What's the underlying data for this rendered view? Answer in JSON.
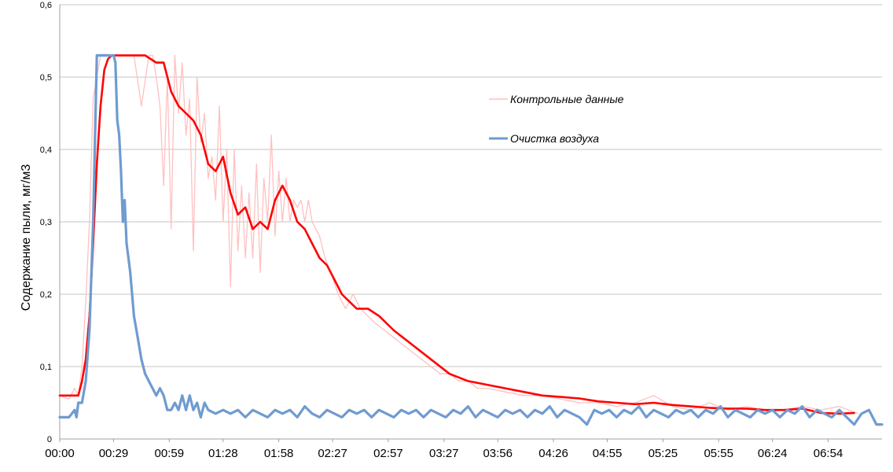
{
  "chart_data": {
    "type": "line",
    "ylabel": "Содержание пыли, мг/м3",
    "xlabel": "",
    "ylim": [
      0,
      0.6
    ],
    "y_ticks": [
      "0",
      "0,1",
      "0,2",
      "0,3",
      "0,4",
      "0,5",
      "0,6"
    ],
    "y_tick_values": [
      0,
      0.1,
      0.2,
      0.3,
      0.4,
      0.5,
      0.6
    ],
    "x_ticks": [
      "00:00",
      "00:29",
      "00:59",
      "01:28",
      "01:58",
      "02:27",
      "02:57",
      "03:27",
      "03:56",
      "04:26",
      "04:55",
      "05:25",
      "05:55",
      "06:24",
      "06:54"
    ],
    "x_tick_seconds": [
      0,
      29,
      59,
      88,
      118,
      147,
      177,
      207,
      236,
      266,
      295,
      325,
      355,
      384,
      414
    ],
    "x_range_seconds": [
      0,
      443
    ],
    "grid": true,
    "legend_position": "right",
    "series": [
      {
        "name": "Контрольные данные",
        "color": "#ffc0c0",
        "x_seconds": [
          0,
          5,
          8,
          10,
          12,
          14,
          16,
          18,
          20,
          22,
          25,
          28,
          30,
          32,
          35,
          38,
          40,
          44,
          48,
          50,
          52,
          54,
          56,
          58,
          60,
          62,
          64,
          66,
          68,
          70,
          72,
          74,
          76,
          78,
          80,
          82,
          84,
          86,
          88,
          90,
          92,
          94,
          96,
          98,
          100,
          102,
          104,
          106,
          108,
          110,
          112,
          114,
          116,
          118,
          120,
          122,
          124,
          126,
          128,
          130,
          132,
          134,
          136,
          138,
          140,
          143,
          146,
          150,
          154,
          158,
          162,
          166,
          170,
          175,
          180,
          185,
          190,
          195,
          200,
          205,
          210,
          215,
          220,
          225,
          230,
          240,
          250,
          260,
          270,
          280,
          290,
          300,
          310,
          320,
          330,
          340,
          350,
          360,
          370,
          380,
          390,
          400,
          410,
          420,
          430
        ],
        "values": [
          0.06,
          0.055,
          0.07,
          0.06,
          0.1,
          0.19,
          0.3,
          0.47,
          0.5,
          0.53,
          0.53,
          0.53,
          0.53,
          0.53,
          0.53,
          0.53,
          0.53,
          0.46,
          0.53,
          0.53,
          0.5,
          0.46,
          0.35,
          0.5,
          0.29,
          0.53,
          0.45,
          0.52,
          0.42,
          0.47,
          0.26,
          0.5,
          0.41,
          0.45,
          0.36,
          0.39,
          0.33,
          0.46,
          0.3,
          0.4,
          0.21,
          0.4,
          0.26,
          0.35,
          0.25,
          0.34,
          0.25,
          0.38,
          0.23,
          0.36,
          0.3,
          0.42,
          0.28,
          0.37,
          0.3,
          0.36,
          0.3,
          0.33,
          0.32,
          0.33,
          0.3,
          0.33,
          0.3,
          0.29,
          0.28,
          0.25,
          0.23,
          0.2,
          0.18,
          0.2,
          0.18,
          0.17,
          0.16,
          0.15,
          0.14,
          0.13,
          0.12,
          0.11,
          0.1,
          0.09,
          0.09,
          0.08,
          0.08,
          0.07,
          0.07,
          0.065,
          0.06,
          0.06,
          0.055,
          0.05,
          0.05,
          0.045,
          0.05,
          0.06,
          0.045,
          0.04,
          0.05,
          0.04,
          0.045,
          0.04,
          0.04,
          0.045,
          0.04,
          0.045,
          0.035
        ]
      },
      {
        "name": "",
        "color": "#ff0000",
        "x_seconds": [
          0,
          10,
          12,
          14,
          16,
          18,
          20,
          22,
          24,
          26,
          28,
          30,
          40,
          46,
          52,
          56,
          60,
          64,
          68,
          72,
          76,
          80,
          84,
          88,
          92,
          96,
          100,
          104,
          108,
          112,
          116,
          120,
          124,
          128,
          132,
          136,
          140,
          144,
          148,
          152,
          156,
          160,
          166,
          172,
          180,
          190,
          200,
          210,
          220,
          230,
          240,
          250,
          260,
          270,
          280,
          290,
          300,
          310,
          320,
          330,
          340,
          350,
          360,
          370,
          380,
          390,
          400,
          410,
          420,
          428
        ],
        "values": [
          0.06,
          0.06,
          0.08,
          0.11,
          0.17,
          0.27,
          0.38,
          0.46,
          0.51,
          0.525,
          0.53,
          0.53,
          0.53,
          0.53,
          0.52,
          0.52,
          0.48,
          0.46,
          0.45,
          0.44,
          0.42,
          0.38,
          0.37,
          0.39,
          0.34,
          0.31,
          0.32,
          0.29,
          0.3,
          0.29,
          0.33,
          0.35,
          0.33,
          0.3,
          0.29,
          0.27,
          0.25,
          0.24,
          0.22,
          0.2,
          0.19,
          0.18,
          0.18,
          0.17,
          0.15,
          0.13,
          0.11,
          0.09,
          0.08,
          0.075,
          0.07,
          0.065,
          0.06,
          0.058,
          0.056,
          0.052,
          0.05,
          0.048,
          0.05,
          0.047,
          0.045,
          0.043,
          0.042,
          0.042,
          0.04,
          0.04,
          0.042,
          0.036,
          0.035,
          0.036
        ]
      },
      {
        "name": "Очистка воздуха",
        "color": "#6f9bd1",
        "x_seconds": [
          0,
          5,
          8,
          9,
          10,
          12,
          14,
          16,
          18,
          20,
          22,
          24,
          26,
          28,
          29,
          30,
          31,
          32,
          33,
          34,
          35,
          36,
          37,
          38,
          40,
          42,
          44,
          46,
          48,
          50,
          52,
          54,
          56,
          58,
          60,
          62,
          64,
          66,
          68,
          70,
          72,
          74,
          76,
          78,
          80,
          84,
          88,
          92,
          96,
          100,
          104,
          108,
          112,
          116,
          120,
          124,
          128,
          132,
          136,
          140,
          144,
          148,
          152,
          156,
          160,
          164,
          168,
          172,
          176,
          180,
          184,
          188,
          192,
          196,
          200,
          204,
          208,
          212,
          216,
          220,
          224,
          228,
          232,
          236,
          240,
          244,
          248,
          252,
          256,
          260,
          264,
          268,
          272,
          276,
          280,
          284,
          288,
          292,
          296,
          300,
          304,
          308,
          312,
          316,
          320,
          324,
          328,
          332,
          336,
          340,
          344,
          348,
          352,
          356,
          360,
          364,
          368,
          372,
          376,
          380,
          384,
          388,
          392,
          396,
          400,
          404,
          408,
          412,
          416,
          420,
          424,
          428,
          432,
          436,
          440,
          443
        ],
        "values": [
          0.03,
          0.03,
          0.04,
          0.03,
          0.05,
          0.05,
          0.08,
          0.15,
          0.3,
          0.53,
          0.53,
          0.53,
          0.53,
          0.53,
          0.53,
          0.52,
          0.44,
          0.42,
          0.37,
          0.3,
          0.33,
          0.27,
          0.25,
          0.23,
          0.17,
          0.14,
          0.11,
          0.09,
          0.08,
          0.07,
          0.06,
          0.07,
          0.06,
          0.04,
          0.04,
          0.05,
          0.04,
          0.06,
          0.04,
          0.06,
          0.04,
          0.05,
          0.03,
          0.05,
          0.04,
          0.035,
          0.04,
          0.035,
          0.04,
          0.03,
          0.04,
          0.035,
          0.03,
          0.04,
          0.035,
          0.04,
          0.03,
          0.045,
          0.035,
          0.03,
          0.04,
          0.035,
          0.03,
          0.04,
          0.035,
          0.04,
          0.03,
          0.04,
          0.035,
          0.03,
          0.04,
          0.035,
          0.04,
          0.03,
          0.04,
          0.035,
          0.03,
          0.04,
          0.035,
          0.045,
          0.03,
          0.04,
          0.035,
          0.03,
          0.04,
          0.035,
          0.04,
          0.03,
          0.04,
          0.035,
          0.045,
          0.03,
          0.04,
          0.035,
          0.03,
          0.02,
          0.04,
          0.035,
          0.04,
          0.03,
          0.04,
          0.035,
          0.045,
          0.03,
          0.04,
          0.035,
          0.03,
          0.04,
          0.035,
          0.04,
          0.03,
          0.04,
          0.035,
          0.045,
          0.03,
          0.04,
          0.035,
          0.03,
          0.04,
          0.035,
          0.04,
          0.03,
          0.04,
          0.035,
          0.045,
          0.03,
          0.04,
          0.035,
          0.03,
          0.04,
          0.03,
          0.02,
          0.035,
          0.04,
          0.02,
          0.02
        ]
      }
    ]
  }
}
